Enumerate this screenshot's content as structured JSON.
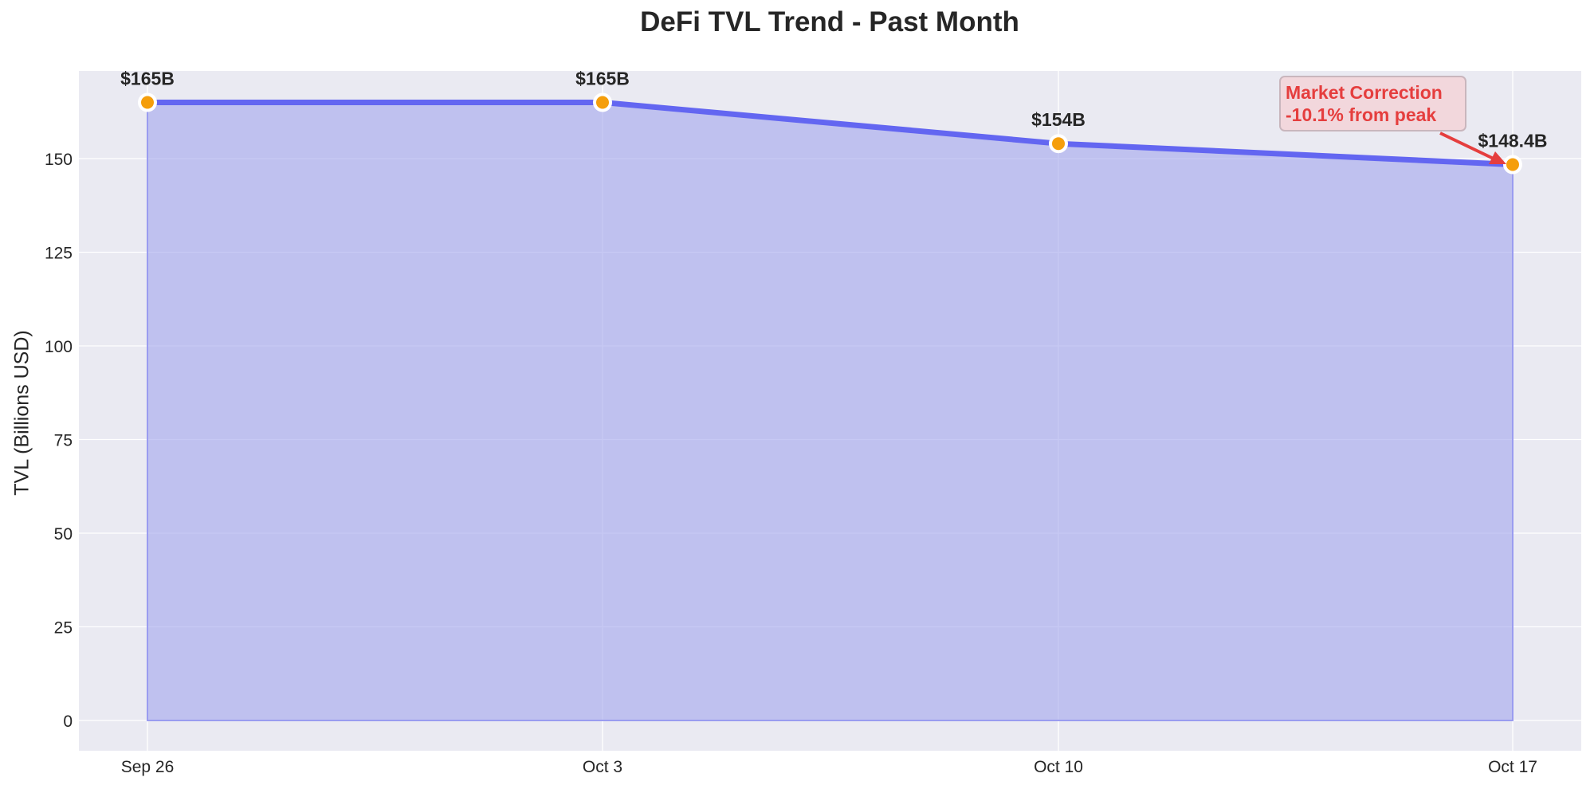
{
  "chart_data": {
    "type": "area",
    "title": "DeFi TVL Trend - Past Month",
    "xlabel": "",
    "ylabel": "TVL (Billions USD)",
    "categories": [
      "Sep 26",
      "Oct 3",
      "Oct 10",
      "Oct 17"
    ],
    "values": [
      165,
      165,
      154,
      148.4
    ],
    "data_labels": [
      "$165B",
      "$165B",
      "$154B",
      "$148.4B"
    ],
    "yticks": [
      0,
      25,
      50,
      75,
      100,
      125,
      150
    ],
    "ylim": [
      -8,
      173
    ],
    "grid": true,
    "legend": null,
    "annotation": {
      "text_line1": "Market Correction",
      "text_line2": "-10.1% from peak",
      "target": "Oct 17",
      "color": "#e53e3e"
    },
    "colors": {
      "line": "#6366f1",
      "fill": "#a5a8ee",
      "marker": "#f59e0b",
      "plot_bg": "#eaeaf2"
    }
  }
}
